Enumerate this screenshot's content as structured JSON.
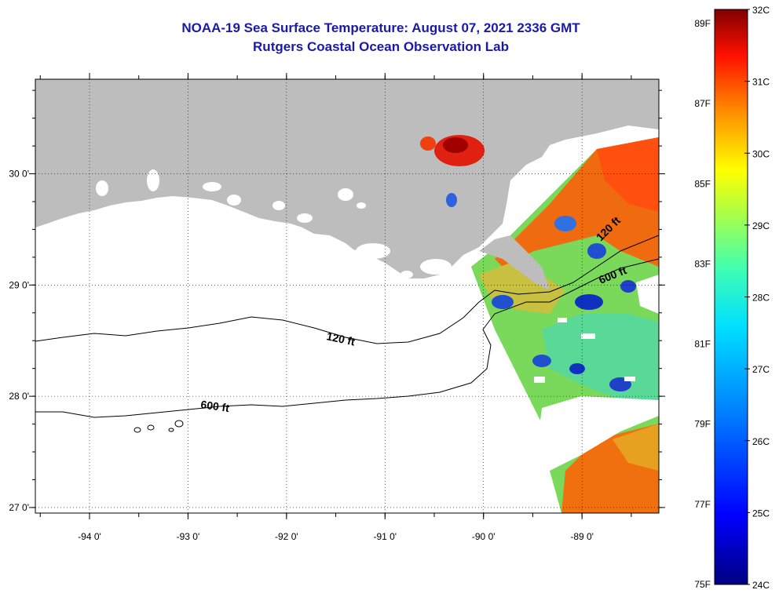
{
  "title_line1": "NOAA-19 Sea Surface Temperature:  August 07, 2021 2336 GMT",
  "title_line2": "Rutgers Coastal Ocean Observation Lab",
  "map": {
    "lon_ticks": [
      {
        "lon": -94,
        "label": "-94 0'"
      },
      {
        "lon": -93,
        "label": "-93 0'"
      },
      {
        "lon": -92,
        "label": "-92 0'"
      },
      {
        "lon": -91,
        "label": "-91 0'"
      },
      {
        "lon": -90,
        "label": "-90 0'"
      },
      {
        "lon": -89,
        "label": "-89 0'"
      }
    ],
    "lat_ticks": [
      {
        "lat": 30,
        "label": "30 0'"
      },
      {
        "lat": 29,
        "label": "29 0'"
      },
      {
        "lat": 28,
        "label": "28 0'"
      },
      {
        "lat": 27,
        "label": "27 0'"
      }
    ],
    "lon_range": [
      -94.55,
      -88.22
    ],
    "lat_range": [
      26.95,
      30.85
    ],
    "land_color": "#bdbdbd",
    "contours": [
      {
        "id": "c120",
        "label": "120 ft"
      },
      {
        "id": "c600",
        "label": "600 ft"
      }
    ]
  },
  "colorbar": {
    "celsius": [
      "32C",
      "31C",
      "30C",
      "29C",
      "28C",
      "27C",
      "26C",
      "25C",
      "24C"
    ],
    "fahrenheit": [
      "89F",
      "87F",
      "85F",
      "83F",
      "81F",
      "79F",
      "77F",
      "75F"
    ]
  }
}
